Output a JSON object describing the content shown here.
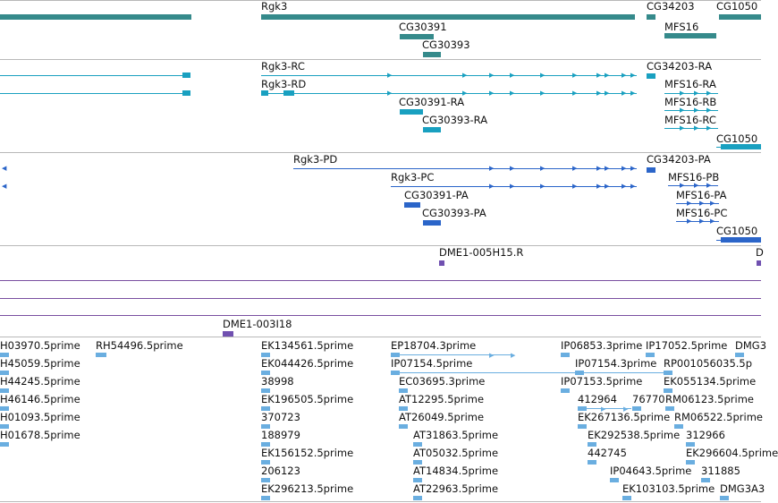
{
  "colors": {
    "gene": "#358a8b",
    "transcript": "#19a0c0",
    "protein": "#2b65c9",
    "clone": "#7050b0",
    "est": "#6aaee0",
    "separator": "#b8b8b8",
    "purple_line": "#7a4fa0"
  },
  "tracks": {
    "genes": {
      "labels": [
        "Rgk3",
        "CG30391",
        "CG30393",
        "CG34203",
        "MFS16",
        "CG1050"
      ]
    },
    "transcripts": {
      "labels": [
        "Rgk3-RC",
        "Rgk3-RD",
        "CG30391-RA",
        "CG30393-RA",
        "CG34203-RA",
        "MFS16-RA",
        "MFS16-RB",
        "MFS16-RC",
        "CG1050"
      ]
    },
    "proteins": {
      "labels": [
        "Rgk3-PD",
        "Rgk3-PC",
        "CG30391-PA",
        "CG30393-PA",
        "CG34203-PA",
        "MFS16-PB",
        "MFS16-PA",
        "MFS16-PC",
        "CG1050"
      ]
    },
    "clones_a": {
      "labels": [
        "DME1-005H15.R",
        "D"
      ]
    },
    "clones_b": {
      "labels": [
        "DME1-003I18"
      ]
    },
    "ests": {
      "labels": [
        "H03970.5prime",
        "H45059.5prime",
        "H44245.5prime",
        "H46146.5prime",
        "H01093.5prime",
        "H01678.5prime",
        "RH54496.5prime",
        "EK134561.5prime",
        "EK044426.5prime",
        "38998",
        "EK196505.5prime",
        "370723",
        "188979",
        "EK156152.5prime",
        "206123",
        "EK296213.5prime",
        "EP18704.3prime",
        "IP07154.5prime",
        "EC03695.3prime",
        "AT12295.5prime",
        "AT26049.5prime",
        "AT31863.5prime",
        "AT05032.5prime",
        "AT14834.5prime",
        "AT22963.5prime",
        "IP06853.3prime",
        "IP07154.3prime",
        "IP07153.5prime",
        "412964",
        "EK267136.5prime",
        "EK292538.5prime",
        "442745",
        "IP04643.5prime",
        "EK103103.5prime",
        "IP17052.5prime",
        "RP001056035.5p",
        "EK055134.5prime",
        "76770",
        "RM06123.5prime",
        "RM06522.5prime",
        "312966",
        "EK296604.5prime",
        "311885",
        "DMG3",
        "DMG3A3"
      ]
    }
  }
}
